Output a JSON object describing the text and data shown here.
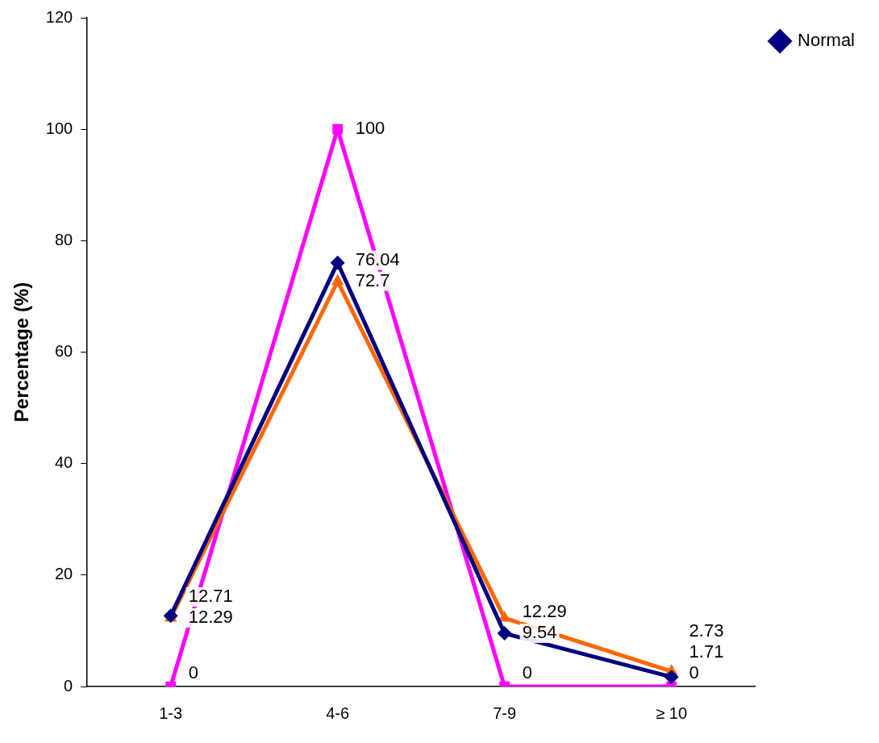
{
  "chart_data": {
    "type": "line",
    "ylabel": "Percentage (%)",
    "categories": [
      "1-3",
      "4-6",
      "7-9",
      "≥ 10"
    ],
    "series": [
      {
        "name": "Normal",
        "color": "#000080",
        "marker": "diamond",
        "values": [
          12.71,
          76.04,
          9.54,
          1.71
        ]
      },
      {
        "color": "#ff6600",
        "marker": "triangle",
        "values": [
          12.29,
          72.7,
          12.29,
          2.73
        ]
      },
      {
        "color": "#ff00ff",
        "marker": "square",
        "values": [
          0,
          100,
          0,
          0
        ]
      }
    ],
    "ylim": [
      0,
      120
    ],
    "yticks": [
      0,
      20,
      40,
      60,
      80,
      100,
      120
    ],
    "grid": false,
    "legend": "top right",
    "data_labels": true
  }
}
